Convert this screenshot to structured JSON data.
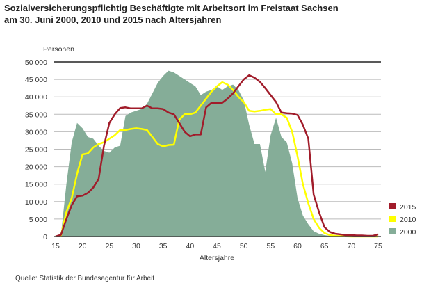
{
  "chart_data": {
    "type": "area+line",
    "title_line1": "Sozialversicherungspflichtig Beschäftigte mit Arbeitsort im Freistaat Sachsen",
    "title_line2": "am 30. Juni 2000, 2010 und 2015 nach Altersjahren",
    "ylabel": "Personen",
    "xlabel": "Altersjahre",
    "xlim": [
      15,
      75
    ],
    "ylim": [
      0,
      50000
    ],
    "x_ticks": [
      15,
      20,
      25,
      30,
      35,
      40,
      45,
      50,
      55,
      60,
      65,
      70,
      75
    ],
    "y_ticks": [
      "0",
      "5 000",
      "10 000",
      "15 000",
      "20 000",
      "25 000",
      "30 000",
      "35 000",
      "40 000",
      "45 000",
      "50 000"
    ],
    "legend_position": "right",
    "x": [
      15,
      16,
      17,
      18,
      19,
      20,
      21,
      22,
      23,
      24,
      25,
      26,
      27,
      28,
      29,
      30,
      31,
      32,
      33,
      34,
      35,
      36,
      37,
      38,
      39,
      40,
      41,
      42,
      43,
      44,
      45,
      46,
      47,
      48,
      49,
      50,
      51,
      52,
      53,
      54,
      55,
      56,
      57,
      58,
      59,
      60,
      61,
      62,
      63,
      64,
      65,
      66,
      67,
      68,
      69,
      70,
      71,
      72,
      73,
      74,
      75
    ],
    "series": [
      {
        "name": "2000",
        "style": "area",
        "color": "#85AD98",
        "values": [
          0,
          500,
          15000,
          27000,
          32500,
          31000,
          28500,
          28000,
          26000,
          24500,
          24000,
          25500,
          26000,
          34500,
          35500,
          36000,
          36500,
          38000,
          41000,
          44000,
          46000,
          47500,
          47000,
          46000,
          45000,
          44000,
          43000,
          40500,
          41500,
          42000,
          43000,
          42000,
          43000,
          43500,
          42000,
          39000,
          32000,
          26500,
          26500,
          18500,
          29000,
          34000,
          28500,
          27000,
          21000,
          11000,
          6000,
          3500,
          1500,
          800,
          400,
          200,
          100,
          50,
          0,
          0,
          0,
          0,
          0,
          0,
          0
        ]
      },
      {
        "name": "2010",
        "style": "line",
        "color": "#FFFF00",
        "values": [
          0,
          300,
          7000,
          11000,
          18000,
          23500,
          23800,
          25500,
          26500,
          27000,
          28000,
          29000,
          30500,
          30500,
          30800,
          31000,
          30800,
          30500,
          28500,
          26500,
          25800,
          26200,
          26300,
          33500,
          35000,
          35000,
          35500,
          37500,
          39500,
          41500,
          43000,
          44200,
          43500,
          42000,
          40000,
          38500,
          36000,
          35800,
          36000,
          36300,
          36500,
          35000,
          35000,
          34000,
          30000,
          23000,
          15000,
          9500,
          5000,
          2500,
          1000,
          400,
          200,
          100,
          50,
          0,
          0,
          0,
          0,
          0,
          0
        ]
      },
      {
        "name": "2015",
        "style": "line",
        "color": "#A11C2A",
        "values": [
          0,
          500,
          5000,
          9000,
          11500,
          11700,
          12500,
          14000,
          16500,
          26000,
          32500,
          35000,
          36800,
          37000,
          36700,
          36700,
          36700,
          37500,
          36700,
          36700,
          36500,
          35500,
          35000,
          32500,
          30000,
          28700,
          29200,
          29200,
          37000,
          38300,
          38200,
          38300,
          39500,
          41000,
          43000,
          45000,
          46200,
          45500,
          44300,
          42500,
          40500,
          38500,
          35500,
          35300,
          35200,
          34800,
          32000,
          28000,
          12000,
          7000,
          2700,
          1300,
          800,
          600,
          400,
          400,
          300,
          300,
          200,
          200,
          600
        ]
      }
    ],
    "source": "Quelle: Statistik der Bundesagentur für Arbeit"
  }
}
